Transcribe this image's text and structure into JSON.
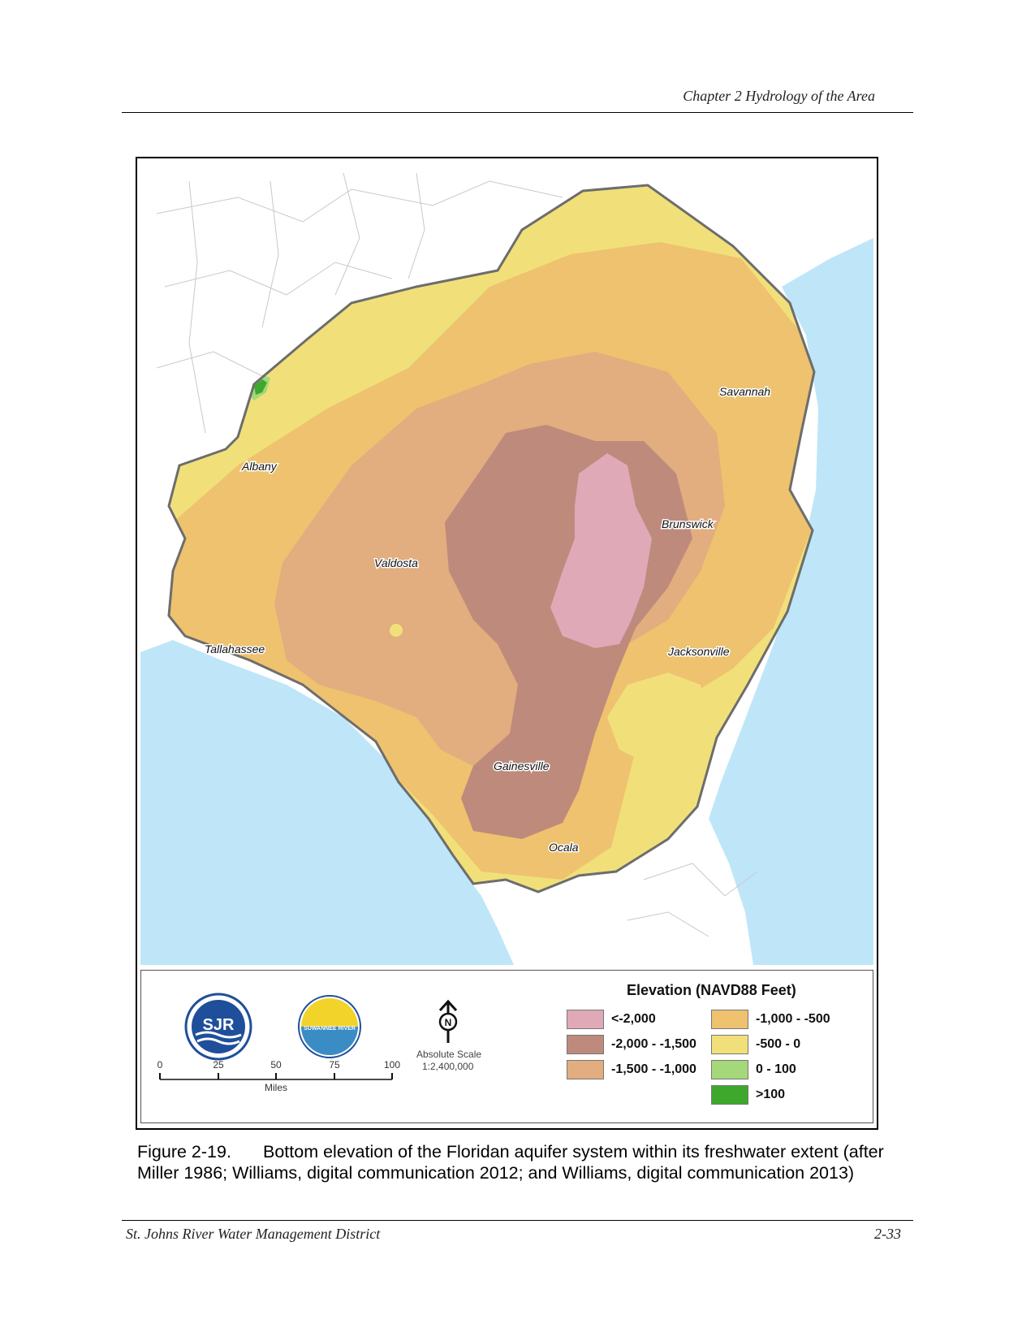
{
  "header": {
    "chapter": "Chapter 2 Hydrology of the Area"
  },
  "map": {
    "colors": {
      "water": "#bfe6f8",
      "land": "#ffffff",
      "outline": "#6d6d6d",
      "lt_neg2000": "#dfa9b8",
      "neg2000_neg1500": "#be8a7c",
      "neg1500_neg1000": "#e2ad7f",
      "neg1000_neg500": "#eec26e",
      "neg500_0": "#f1e07a",
      "zero_100": "#a4d87a",
      "gt100": "#3ea82c"
    },
    "cities": {
      "savannah": "Savannah",
      "albany": "Albany",
      "brunswick": "Brunswick",
      "valdosta": "Valdosta",
      "tallahassee": "Tallahassee",
      "jacksonville": "Jacksonville",
      "gainesville": "Gainesville",
      "ocala": "Ocala"
    }
  },
  "legend": {
    "title": "Elevation (NAVD88 Feet)",
    "items": [
      {
        "label": "<-2,000",
        "color": "#dfa9b8"
      },
      {
        "label": "-2,000 - -1,500",
        "color": "#be8a7c"
      },
      {
        "label": "-1,500 - -1,000",
        "color": "#e2ad7f"
      },
      {
        "label": "-1,000 - -500",
        "color": "#eec26e"
      },
      {
        "label": "-500 - 0",
        "color": "#f1e07a"
      },
      {
        "label": "0 - 100",
        "color": "#a4d87a"
      },
      {
        "label": ">100",
        "color": "#3ea82c"
      }
    ],
    "scale": {
      "ticks": [
        "0",
        "25",
        "50",
        "75",
        "100"
      ],
      "unit": "Miles",
      "absolute_label": "Absolute Scale",
      "ratio": "1:2,400,000"
    },
    "logos": {
      "sjr_text": "SJR",
      "srwmd_text": "SUWANNEE RIVER"
    },
    "north_letter": "N"
  },
  "caption": {
    "number": "Figure 2-19.",
    "text": "Bottom elevation of the Floridan aquifer system within its freshwater extent (after Miller 1986; Williams, digital communication 2012; and Williams, digital communication 2013)"
  },
  "footer": {
    "left": "St. Johns River Water Management District",
    "right": "2-33"
  }
}
